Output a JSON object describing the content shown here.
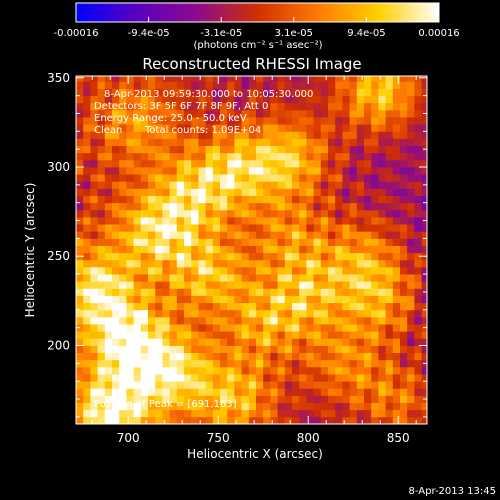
{
  "chart_data": {
    "type": "heatmap",
    "title": "Reconstructed RHESSI Image",
    "xlabel": "Heliocentric X (arcsec)",
    "ylabel": "Heliocentric Y (arcsec)",
    "xlim": [
      671,
      866
    ],
    "ylim": [
      156,
      351
    ],
    "x_ticks": [
      700,
      750,
      800,
      850
    ],
    "y_ticks": [
      200,
      250,
      300,
      350
    ],
    "pixel_size_arcsec": 4,
    "colorbar": {
      "range": [
        -0.00016,
        0.00016
      ],
      "tick_labels": [
        "-0.00016",
        "-9.4e-05",
        "-3.1e-05",
        "3.1e-05",
        "9.4e-05",
        "0.00016"
      ],
      "unit_label": "(photons cm⁻² s⁻¹ asec⁻²)",
      "colors": [
        "#0000ff",
        "#5a00c0",
        "#8c0a8c",
        "#d03000",
        "#ff7a00",
        "#ffd000",
        "#ffffff"
      ]
    },
    "annotations": {
      "time_range": "8-Apr-2013 09:59:30.000 to 10:05:30.000",
      "detectors": "Detectors: 3F 5F 6F 7F 8F 9F, Att 0",
      "energy_range": "Energy Range: 25.0 - 50.0 keV",
      "clean": "Clean",
      "total_counts": "Total counts: 1.09E+04",
      "peak_position": "Position of Peak = [691,163]"
    },
    "bright_regions": [
      {
        "x": 691,
        "y": 163,
        "peak": 0.00016
      },
      {
        "x": 700,
        "y": 203,
        "peak": 0.00015
      },
      {
        "x": 682,
        "y": 232,
        "peak": 0.00013
      },
      {
        "x": 715,
        "y": 263,
        "peak": 0.00012
      },
      {
        "x": 735,
        "y": 285,
        "peak": 0.0001
      },
      {
        "x": 760,
        "y": 298,
        "peak": 0.00011
      },
      {
        "x": 790,
        "y": 305,
        "peak": 0.00012
      },
      {
        "x": 840,
        "y": 343,
        "peak": 0.00014
      },
      {
        "x": 745,
        "y": 240,
        "peak": 0.00011
      },
      {
        "x": 790,
        "y": 260,
        "peak": 8e-05
      },
      {
        "x": 800,
        "y": 228,
        "peak": 0.0001
      },
      {
        "x": 830,
        "y": 250,
        "peak": 9e-05
      },
      {
        "x": 840,
        "y": 225,
        "peak": 0.0001
      },
      {
        "x": 820,
        "y": 190,
        "peak": 8e-05
      },
      {
        "x": 760,
        "y": 170,
        "peak": 0.00011
      },
      {
        "x": 725,
        "y": 185,
        "peak": 0.00013
      },
      {
        "x": 850,
        "y": 170,
        "peak": 8e-05
      },
      {
        "x": 705,
        "y": 325,
        "peak": 8e-05
      },
      {
        "x": 775,
        "y": 212,
        "peak": 9e-05
      }
    ],
    "grid": false,
    "legend": "none"
  },
  "footer_timestamp": "8-Apr-2013 13:45"
}
